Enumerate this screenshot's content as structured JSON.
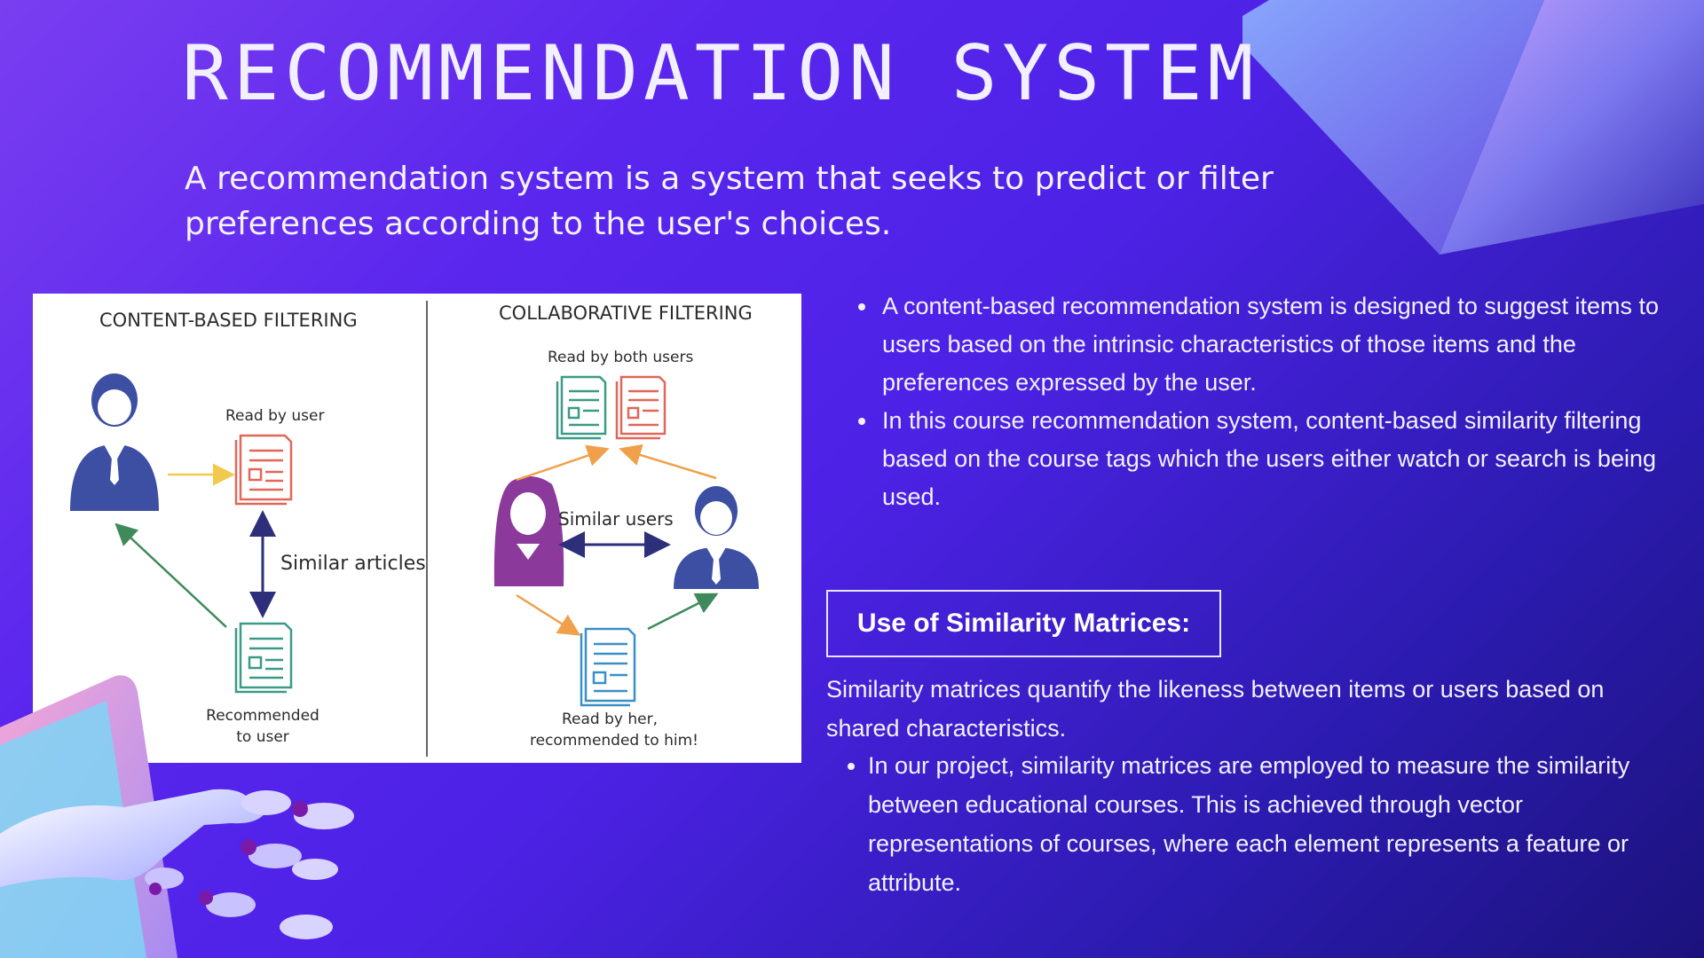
{
  "slide": {
    "title": "RECOMMENDATION SYSTEM",
    "subtitle": "A recommendation system is a system that seeks to predict or filter preferences according to the user's choices."
  },
  "diagram": {
    "content_heading": "CONTENT-BASED FILTERING",
    "collab_heading": "COLLABORATIVE FILTERING",
    "read_by_user": "Read by user",
    "similar_articles": "Similar articles",
    "recommended_line1": "Recommended",
    "recommended_line2": "to user",
    "read_by_both": "Read by both users",
    "similar_users": "Similar users",
    "read_by_her_line1": "Read by her,",
    "read_by_her_line2": "recommended to him!"
  },
  "bullets": [
    "A content-based recommendation system is designed to suggest items to users based on the intrinsic characteristics of those items and the preferences expressed by the user.",
    "In this course recommendation system, content-based similarity filtering based on the course tags which the users either watch or search is being used."
  ],
  "similarity": {
    "heading": "Use of Similarity Matrices:",
    "paragraph": "Similarity matrices quantify the likeness between items or users based on shared characteristics.",
    "bullets": [
      " In our project, similarity matrices are employed to measure the similarity between educational courses. This is achieved through vector representations of courses, where each element represents a feature or attribute."
    ]
  },
  "colors": {
    "background_start": "#7a3ef0",
    "background_end": "#1c127c",
    "person_blue": "#3d4fa3",
    "person_purple": "#8b3a9c",
    "doc_red": "#e0675a",
    "doc_teal": "#3c9a86",
    "doc_blue": "#3b8fc8",
    "arrow_yellow": "#f2c94c",
    "arrow_green": "#3f8a5a",
    "arrow_orange": "#f0a04b",
    "arrow_navy": "#2e2f7a"
  },
  "icons": [
    "user-icon",
    "document-icon",
    "double-arrow-icon",
    "robot-hand-illustration",
    "prism-decoration"
  ]
}
